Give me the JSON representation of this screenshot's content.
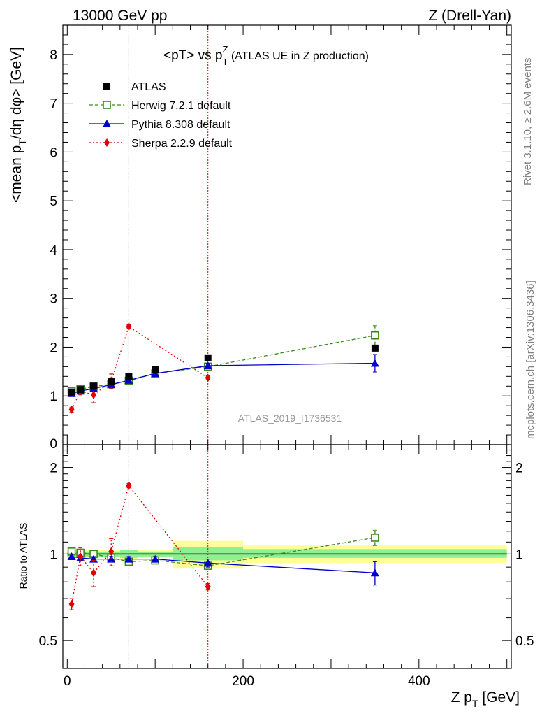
{
  "header": {
    "left": "13000 GeV pp",
    "right": "Z (Drell-Yan)"
  },
  "side_labels": {
    "rivet": "Rivet 3.1.10, ≥ 2.6M events",
    "mcplots": "mcplots.cern.ch [arXiv:1306.3436]"
  },
  "analysis_id": "ATLAS_2019_I1736531",
  "colors": {
    "atlas": "#000000",
    "herwig": "#3a8a1a",
    "pythia": "#0000cc",
    "sherpa": "#e00000",
    "band_inner": "#90f090",
    "band_outer": "#ffff99"
  },
  "chart_data": [
    {
      "type": "line",
      "panel": "main",
      "title": "<pT> vs p_T^Z (ATLAS UE in Z production)",
      "title_parts": {
        "a": "<pT> vs p",
        "sub": "T",
        "sup": "Z",
        "b": " (ATLAS UE in Z production)"
      },
      "ylabel": "<mean p_T/dη dφ> [GeV]",
      "ylabel_parts": {
        "a": "<mean p",
        "sub": "T",
        "b": "/dη dφ> [GeV]"
      },
      "xlim": [
        -5,
        505
      ],
      "ylim": [
        0,
        8.6
      ],
      "yticks": [
        "1",
        "2",
        "3",
        "4",
        "5",
        "6",
        "7",
        "8"
      ],
      "ytick_values": [
        1,
        2,
        3,
        4,
        5,
        6,
        7,
        8
      ],
      "ytick_zero": "0",
      "legend_position": "top-left",
      "vlines": [
        70,
        160
      ],
      "series": [
        {
          "name": "ATLAS",
          "style": "markers",
          "x": [
            5,
            15,
            30,
            50,
            70,
            100,
            160,
            350
          ],
          "y": [
            1.08,
            1.13,
            1.2,
            1.29,
            1.4,
            1.54,
            1.78,
            1.98
          ]
        },
        {
          "name": "Herwig 7.2.1 default",
          "style": "dashed",
          "x": [
            5,
            15,
            30,
            50,
            70,
            100,
            160,
            350
          ],
          "y": [
            1.1,
            1.14,
            1.19,
            1.24,
            1.31,
            1.46,
            1.6,
            2.24
          ],
          "err": [
            0.03,
            0.03,
            0.03,
            0.03,
            0.03,
            0.04,
            0.05,
            0.2
          ]
        },
        {
          "name": "Pythia 8.308 default",
          "style": "solid",
          "x": [
            5,
            15,
            30,
            50,
            70,
            100,
            160,
            350
          ],
          "y": [
            1.05,
            1.1,
            1.15,
            1.23,
            1.32,
            1.46,
            1.62,
            1.67
          ],
          "err": [
            0.03,
            0.03,
            0.03,
            0.03,
            0.03,
            0.04,
            0.05,
            0.18
          ]
        },
        {
          "name": "Sherpa 2.2.9 default",
          "style": "dotted",
          "x": [
            5,
            15,
            30,
            50,
            70,
            160
          ],
          "y": [
            0.72,
            1.1,
            1.02,
            1.3,
            2.42,
            1.37
          ],
          "err": [
            0.05,
            0.08,
            0.16,
            0.15,
            0.04,
            0.04
          ]
        }
      ]
    },
    {
      "type": "line",
      "panel": "ratio",
      "ylabel": "Ratio to ATLAS",
      "xlabel": "Z p_T [GeV]",
      "xlabel_parts": {
        "a": "Z p",
        "sub": "T",
        "b": " [GeV]"
      },
      "xlim": [
        -5,
        505
      ],
      "ylim": [
        0.4,
        2.4
      ],
      "xticks": [
        "0",
        "200",
        "400"
      ],
      "xtick_values": [
        0,
        200,
        400
      ],
      "yticks": [
        "0.5",
        "1",
        "2"
      ],
      "ytick_values": [
        0.5,
        1,
        2
      ],
      "reference_line": 1.0,
      "bands": [
        {
          "x0": 0,
          "x1": 10,
          "inner": [
            0.98,
            1.02
          ],
          "outer": [
            0.97,
            1.03
          ]
        },
        {
          "x0": 10,
          "x1": 20,
          "inner": [
            0.98,
            1.02
          ],
          "outer": [
            0.97,
            1.03
          ]
        },
        {
          "x0": 20,
          "x1": 40,
          "inner": [
            0.98,
            1.02
          ],
          "outer": [
            0.97,
            1.03
          ]
        },
        {
          "x0": 40,
          "x1": 60,
          "inner": [
            0.98,
            1.02
          ],
          "outer": [
            0.97,
            1.03
          ]
        },
        {
          "x0": 60,
          "x1": 80,
          "inner": [
            0.97,
            1.03
          ],
          "outer": [
            0.96,
            1.04
          ]
        },
        {
          "x0": 80,
          "x1": 120,
          "inner": [
            0.98,
            1.02
          ],
          "outer": [
            0.97,
            1.03
          ]
        },
        {
          "x0": 120,
          "x1": 200,
          "inner": [
            0.95,
            1.06
          ],
          "outer": [
            0.89,
            1.11
          ]
        },
        {
          "x0": 200,
          "x1": 500,
          "inner": [
            0.97,
            1.04
          ],
          "outer": [
            0.93,
            1.07
          ]
        }
      ],
      "vlines": [
        70,
        160
      ],
      "series": [
        {
          "name": "Herwig 7.2.1 default",
          "style": "dashed",
          "x": [
            5,
            15,
            30,
            50,
            70,
            100,
            160,
            350
          ],
          "y": [
            1.02,
            1.01,
            1.0,
            0.97,
            0.94,
            0.95,
            0.91,
            1.14
          ],
          "err": [
            0.02,
            0.02,
            0.02,
            0.02,
            0.02,
            0.02,
            0.02,
            0.07
          ]
        },
        {
          "name": "Pythia 8.308 default",
          "style": "solid",
          "x": [
            5,
            15,
            30,
            50,
            70,
            100,
            160,
            350
          ],
          "y": [
            0.98,
            0.97,
            0.96,
            0.96,
            0.96,
            0.96,
            0.93,
            0.86
          ],
          "err": [
            0.02,
            0.02,
            0.02,
            0.02,
            0.02,
            0.02,
            0.03,
            0.08
          ]
        },
        {
          "name": "Sherpa 2.2.9 default",
          "style": "dotted",
          "x": [
            5,
            15,
            30,
            50,
            70,
            160
          ],
          "y": [
            0.67,
            0.98,
            0.86,
            1.02,
            1.73,
            0.77
          ],
          "err": [
            0.03,
            0.07,
            0.09,
            0.11,
            0.03,
            0.02
          ]
        }
      ]
    }
  ]
}
